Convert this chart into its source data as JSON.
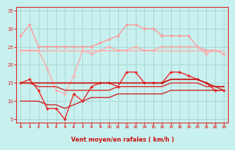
{
  "title": "",
  "xlabel": "Vent moyen/en rafales ( km/h )",
  "ylabel": "",
  "bg_color": "#c8f0ee",
  "grid_color": "#a8d8d4",
  "xlim": [
    -0.5,
    23.5
  ],
  "ylim": [
    4,
    36
  ],
  "yticks": [
    5,
    10,
    15,
    20,
    25,
    30,
    35
  ],
  "xticks": [
    0,
    1,
    2,
    3,
    4,
    5,
    6,
    7,
    8,
    9,
    10,
    11,
    12,
    13,
    14,
    15,
    16,
    17,
    18,
    19,
    20,
    21,
    22,
    23
  ],
  "series": [
    {
      "label": "top_salmon_markers",
      "y": [
        28,
        31,
        25,
        25,
        25,
        25,
        25,
        25,
        25,
        26,
        27,
        28,
        31,
        31,
        30,
        30,
        28,
        28,
        28,
        28,
        25,
        24,
        24,
        23
      ],
      "color": "#ff9999",
      "lw": 1.0,
      "marker": "D",
      "ms": 2.0
    },
    {
      "label": "second_salmon_flat",
      "y": [
        24,
        24,
        24,
        24,
        24,
        24,
        24,
        24,
        24,
        24,
        24,
        24,
        24,
        24,
        24,
        24,
        24,
        24,
        24,
        24,
        24,
        24,
        24,
        24
      ],
      "color": "#ffaaaa",
      "lw": 1.0,
      "marker": null,
      "ms": 0
    },
    {
      "label": "third_salmon_dip_markers",
      "y": [
        24,
        24,
        24,
        19,
        13,
        12,
        17,
        24,
        23,
        24,
        25,
        24,
        24,
        25,
        24,
        24,
        25,
        25,
        25,
        25,
        25,
        23,
        24,
        23
      ],
      "color": "#ffaaaa",
      "lw": 1.0,
      "marker": "D",
      "ms": 2.0
    },
    {
      "label": "dark_volatile_markers",
      "y": [
        15,
        16,
        13,
        8,
        8,
        5,
        12,
        10,
        14,
        15,
        15,
        14,
        18,
        18,
        15,
        15,
        15,
        18,
        18,
        17,
        16,
        15,
        13,
        13
      ],
      "color": "#ee2222",
      "lw": 1.0,
      "marker": "D",
      "ms": 2.0
    },
    {
      "label": "smooth_red_top",
      "y": [
        15,
        15,
        15,
        15,
        15,
        15,
        15,
        15,
        15,
        15,
        15,
        15,
        15,
        15,
        15,
        15,
        15,
        16,
        16,
        16,
        16,
        15,
        14,
        14
      ],
      "color": "#cc1111",
      "lw": 1.3,
      "marker": null,
      "ms": 0
    },
    {
      "label": "smooth_red_mid",
      "y": [
        15,
        15,
        14,
        14,
        14,
        13,
        13,
        13,
        13,
        13,
        13,
        14,
        14,
        14,
        14,
        14,
        14,
        15,
        15,
        15,
        15,
        14,
        14,
        13
      ],
      "color": "#dd2222",
      "lw": 1.0,
      "marker": null,
      "ms": 0
    },
    {
      "label": "smooth_red_bottom_rising",
      "y": [
        10,
        10,
        10,
        9,
        9,
        8,
        9,
        10,
        11,
        11,
        11,
        12,
        12,
        12,
        12,
        12,
        12,
        13,
        13,
        13,
        13,
        13,
        13,
        13
      ],
      "color": "#cc2222",
      "lw": 1.0,
      "marker": null,
      "ms": 0
    }
  ],
  "arrow_color": "#dd2222",
  "xlabel_color": "#cc1111",
  "tick_color": "#dd2222",
  "axis_color": "#dd2222"
}
